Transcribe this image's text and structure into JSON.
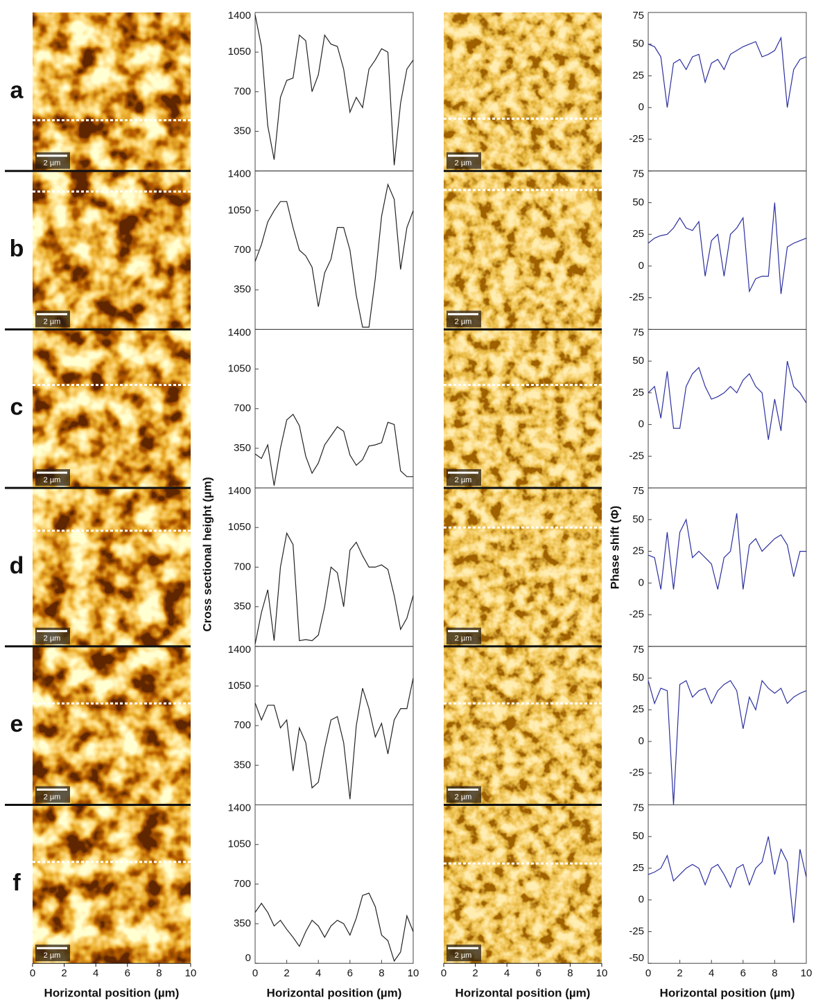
{
  "row_labels": [
    "a",
    "b",
    "c",
    "d",
    "e",
    "f"
  ],
  "scale_bar": "2 µm",
  "x_axis_label": "Horizontal position (µm)",
  "height_axis_label": "Cross sectional height (µm)",
  "phase_axis_label": "Phase shift (Φ)",
  "image_xlim": [
    0,
    10
  ],
  "image_xticks": [
    0,
    2,
    4,
    6,
    8,
    10
  ],
  "chart_data": [
    {
      "type": "line",
      "color": "#222222",
      "xlim": [
        0,
        10
      ],
      "ylim": [
        0,
        1400
      ],
      "yticks": [
        350,
        700,
        1050,
        1400
      ],
      "x": [
        0,
        0.4,
        0.8,
        1.2,
        1.6,
        2,
        2.4,
        2.8,
        3.2,
        3.6,
        4,
        4.4,
        4.8,
        5.2,
        5.6,
        6,
        6.4,
        6.8,
        7.2,
        7.6,
        8,
        8.4,
        8.8,
        9.2,
        9.6,
        10
      ],
      "values": [
        1380,
        1100,
        400,
        100,
        650,
        800,
        820,
        1200,
        1150,
        700,
        850,
        1200,
        1120,
        1100,
        900,
        520,
        650,
        560,
        900,
        980,
        1080,
        1050,
        50,
        600,
        900,
        980
      ]
    },
    {
      "type": "line",
      "color": "#222222",
      "xlim": [
        0,
        10
      ],
      "ylim": [
        0,
        1400
      ],
      "yticks": [
        350,
        700,
        1050,
        1400
      ],
      "x": [
        0,
        0.4,
        0.8,
        1.2,
        1.6,
        2,
        2.4,
        2.8,
        3.2,
        3.6,
        4,
        4.4,
        4.8,
        5.2,
        5.6,
        6,
        6.4,
        6.8,
        7.2,
        7.6,
        8,
        8.4,
        8.8,
        9.2,
        9.6,
        10
      ],
      "values": [
        600,
        750,
        950,
        1050,
        1130,
        1130,
        900,
        700,
        650,
        550,
        200,
        500,
        620,
        900,
        900,
        700,
        300,
        20,
        20,
        450,
        1000,
        1280,
        1150,
        530,
        900,
        1050
      ]
    },
    {
      "type": "line",
      "color": "#222222",
      "xlim": [
        0,
        10
      ],
      "ylim": [
        0,
        1400
      ],
      "yticks": [
        350,
        700,
        1050,
        1400
      ],
      "x": [
        0,
        0.4,
        0.8,
        1.2,
        1.6,
        2,
        2.4,
        2.8,
        3.2,
        3.6,
        4,
        4.4,
        4.8,
        5.2,
        5.6,
        6,
        6.4,
        6.8,
        7.2,
        7.6,
        8,
        8.4,
        8.8,
        9.2,
        9.6,
        10
      ],
      "values": [
        300,
        260,
        380,
        20,
        350,
        600,
        650,
        550,
        280,
        130,
        220,
        380,
        460,
        540,
        500,
        290,
        200,
        250,
        370,
        380,
        400,
        580,
        560,
        150,
        100,
        100
      ]
    },
    {
      "type": "line",
      "color": "#222222",
      "xlim": [
        0,
        10
      ],
      "ylim": [
        0,
        1400
      ],
      "yticks": [
        350,
        700,
        1050,
        1400
      ],
      "x": [
        0,
        0.4,
        0.8,
        1.2,
        1.6,
        2,
        2.4,
        2.8,
        3.2,
        3.6,
        4,
        4.4,
        4.8,
        5.2,
        5.6,
        6,
        6.4,
        6.8,
        7.2,
        7.6,
        8,
        8.4,
        8.8,
        9.2,
        9.6,
        10
      ],
      "values": [
        20,
        300,
        500,
        50,
        700,
        1000,
        900,
        50,
        60,
        50,
        100,
        350,
        700,
        650,
        350,
        850,
        920,
        800,
        700,
        700,
        720,
        680,
        450,
        150,
        250,
        450
      ]
    },
    {
      "type": "line",
      "color": "#222222",
      "xlim": [
        0,
        10
      ],
      "ylim": [
        0,
        1400
      ],
      "yticks": [
        350,
        700,
        1050,
        1400
      ],
      "x": [
        0,
        0.4,
        0.8,
        1.2,
        1.6,
        2,
        2.4,
        2.8,
        3.2,
        3.6,
        4,
        4.4,
        4.8,
        5.2,
        5.6,
        6,
        6.4,
        6.8,
        7.2,
        7.6,
        8,
        8.4,
        8.8,
        9.2,
        9.6,
        10
      ],
      "values": [
        900,
        750,
        880,
        880,
        680,
        750,
        300,
        680,
        550,
        150,
        200,
        500,
        750,
        780,
        550,
        50,
        700,
        1030,
        850,
        600,
        720,
        450,
        750,
        850,
        850,
        1120
      ]
    },
    {
      "type": "line",
      "color": "#222222",
      "xlim": [
        0,
        10
      ],
      "ylim": [
        0,
        1400
      ],
      "yticks": [
        0,
        350,
        700,
        1050,
        1400
      ],
      "xticks": [
        0,
        2,
        4,
        6,
        8,
        10
      ],
      "x": [
        0,
        0.4,
        0.8,
        1.2,
        1.6,
        2,
        2.4,
        2.8,
        3.2,
        3.6,
        4,
        4.4,
        4.8,
        5.2,
        5.6,
        6,
        6.4,
        6.8,
        7.2,
        7.6,
        8,
        8.4,
        8.8,
        9.2,
        9.6,
        10
      ],
      "values": [
        450,
        530,
        450,
        330,
        380,
        300,
        230,
        150,
        280,
        380,
        330,
        230,
        330,
        380,
        350,
        250,
        400,
        600,
        620,
        500,
        250,
        200,
        20,
        100,
        420,
        280
      ]
    },
    {
      "type": "line",
      "color": "#2b2f9e",
      "xlim": [
        0,
        10
      ],
      "ylim": [
        -50,
        75
      ],
      "yticks": [
        -25,
        0,
        25,
        50,
        75
      ],
      "x": [
        0,
        0.4,
        0.8,
        1.2,
        1.6,
        2,
        2.4,
        2.8,
        3.2,
        3.6,
        4,
        4.4,
        4.8,
        5.2,
        5.6,
        6,
        6.4,
        6.8,
        7.2,
        7.6,
        8,
        8.4,
        8.8,
        9.2,
        9.6,
        10
      ],
      "values": [
        50,
        48,
        40,
        0,
        35,
        38,
        30,
        40,
        42,
        20,
        35,
        38,
        30,
        42,
        45,
        48,
        50,
        52,
        40,
        42,
        45,
        55,
        0,
        30,
        38,
        40
      ]
    },
    {
      "type": "line",
      "color": "#2b2f9e",
      "xlim": [
        0,
        10
      ],
      "ylim": [
        -50,
        75
      ],
      "yticks": [
        -25,
        0,
        25,
        50,
        75
      ],
      "x": [
        0,
        0.4,
        0.8,
        1.2,
        1.6,
        2,
        2.4,
        2.8,
        3.2,
        3.6,
        4,
        4.4,
        4.8,
        5.2,
        5.6,
        6,
        6.4,
        6.8,
        7.2,
        7.6,
        8,
        8.4,
        8.8,
        9.2,
        9.6,
        10
      ],
      "values": [
        18,
        22,
        24,
        25,
        30,
        38,
        30,
        28,
        35,
        -8,
        20,
        25,
        -8,
        25,
        30,
        38,
        -20,
        -10,
        -8,
        -8,
        50,
        -22,
        15,
        18,
        20,
        22
      ]
    },
    {
      "type": "line",
      "color": "#2b2f9e",
      "xlim": [
        0,
        10
      ],
      "ylim": [
        -50,
        75
      ],
      "yticks": [
        -25,
        0,
        25,
        50,
        75
      ],
      "x": [
        0,
        0.4,
        0.8,
        1.2,
        1.6,
        2,
        2.4,
        2.8,
        3.2,
        3.6,
        4,
        4.4,
        4.8,
        5.2,
        5.6,
        6,
        6.4,
        6.8,
        7.2,
        7.6,
        8,
        8.4,
        8.8,
        9.2,
        9.6,
        10
      ],
      "values": [
        25,
        30,
        5,
        42,
        -3,
        -3,
        30,
        40,
        45,
        30,
        20,
        22,
        25,
        30,
        25,
        35,
        40,
        30,
        25,
        -12,
        20,
        -5,
        50,
        30,
        25,
        17
      ]
    },
    {
      "type": "line",
      "color": "#2b2f9e",
      "xlim": [
        0,
        10
      ],
      "ylim": [
        -50,
        75
      ],
      "yticks": [
        -25,
        0,
        25,
        50,
        75
      ],
      "x": [
        0,
        0.4,
        0.8,
        1.2,
        1.6,
        2,
        2.4,
        2.8,
        3.2,
        3.6,
        4,
        4.4,
        4.8,
        5.2,
        5.6,
        6,
        6.4,
        6.8,
        7.2,
        7.6,
        8,
        8.4,
        8.8,
        9.2,
        9.6,
        10
      ],
      "values": [
        22,
        20,
        -5,
        40,
        -5,
        40,
        50,
        20,
        25,
        20,
        15,
        -5,
        20,
        25,
        55,
        -5,
        30,
        35,
        25,
        30,
        35,
        38,
        30,
        5,
        25,
        25
      ]
    },
    {
      "type": "line",
      "color": "#2b2f9e",
      "xlim": [
        0,
        10
      ],
      "ylim": [
        -50,
        75
      ],
      "yticks": [
        -25,
        0,
        25,
        50,
        75
      ],
      "x": [
        0,
        0.4,
        0.8,
        1.2,
        1.6,
        2,
        2.4,
        2.8,
        3.2,
        3.6,
        4,
        4.4,
        4.8,
        5.2,
        5.6,
        6,
        6.4,
        6.8,
        7.2,
        7.6,
        8,
        8.4,
        8.8,
        9.2,
        9.6,
        10
      ],
      "values": [
        48,
        30,
        42,
        40,
        -50,
        45,
        48,
        35,
        40,
        42,
        30,
        40,
        45,
        48,
        40,
        10,
        35,
        25,
        48,
        42,
        38,
        42,
        30,
        35,
        38,
        40
      ]
    },
    {
      "type": "line",
      "color": "#2b2f9e",
      "xlim": [
        0,
        10
      ],
      "ylim": [
        -50,
        75
      ],
      "yticks": [
        -50,
        -25,
        0,
        25,
        50,
        75
      ],
      "xticks": [
        0,
        2,
        4,
        6,
        8,
        10
      ],
      "x": [
        0,
        0.4,
        0.8,
        1.2,
        1.6,
        2,
        2.4,
        2.8,
        3.2,
        3.6,
        4,
        4.4,
        4.8,
        5.2,
        5.6,
        6,
        6.4,
        6.8,
        7.2,
        7.6,
        8,
        8.4,
        8.8,
        9.2,
        9.6,
        10
      ],
      "values": [
        20,
        22,
        25,
        35,
        15,
        20,
        25,
        28,
        25,
        12,
        25,
        28,
        20,
        10,
        25,
        28,
        12,
        25,
        30,
        50,
        20,
        40,
        30,
        -18,
        40,
        18
      ]
    }
  ]
}
